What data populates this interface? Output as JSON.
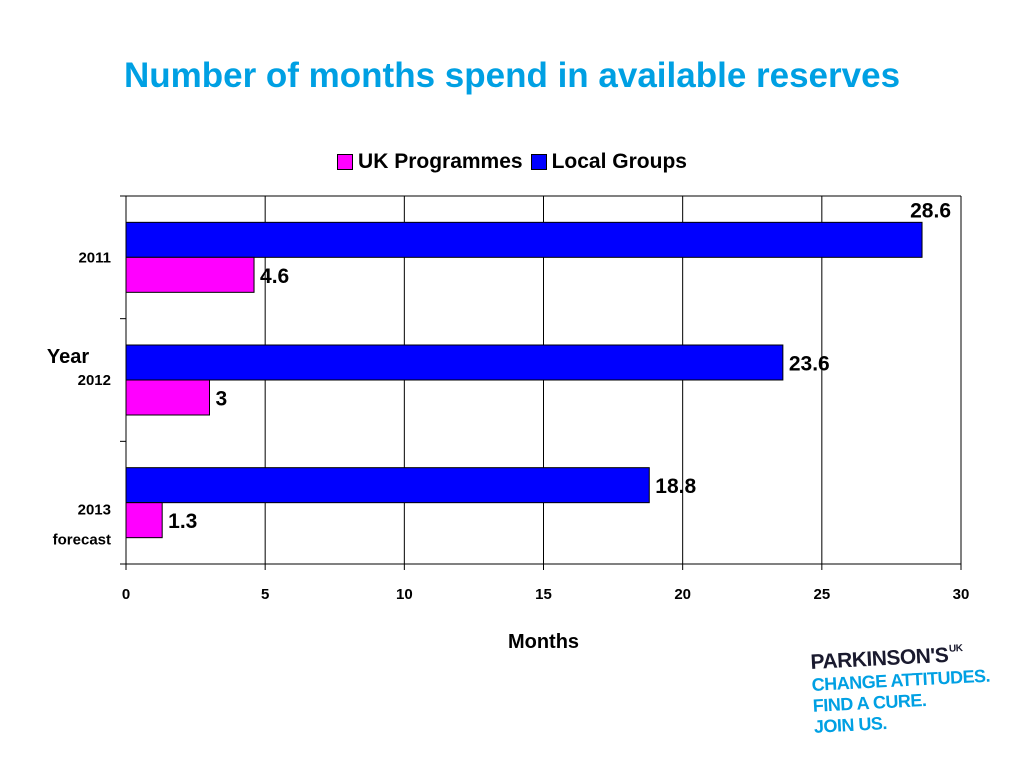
{
  "title": "Number of months spend in available reserves",
  "colors": {
    "title": "#00a0e3",
    "uk_programmes": "#ff00ff",
    "local_groups": "#0000ff"
  },
  "chart_data": {
    "type": "bar",
    "orientation": "horizontal",
    "categories": [
      [
        "2011"
      ],
      [
        "2012"
      ],
      [
        "2013",
        "forecast"
      ]
    ],
    "series": [
      {
        "name": "UK Programmes",
        "color": "#ff00ff",
        "values": [
          4.6,
          3,
          1.3
        ]
      },
      {
        "name": "Local Groups",
        "color": "#0000ff",
        "values": [
          28.6,
          23.6,
          18.8
        ]
      }
    ],
    "xlabel": "Months",
    "ylabel": "Year",
    "xlim": [
      0,
      30
    ],
    "xticks": [
      0,
      5,
      10,
      15,
      20,
      25,
      30
    ],
    "grid": "vertical",
    "legend": "top"
  },
  "logo": {
    "name": "PARKINSON'S",
    "superscript": "UK",
    "lines": [
      "CHANGE ATTITUDES.",
      "FIND A CURE.",
      "JOIN US."
    ]
  }
}
